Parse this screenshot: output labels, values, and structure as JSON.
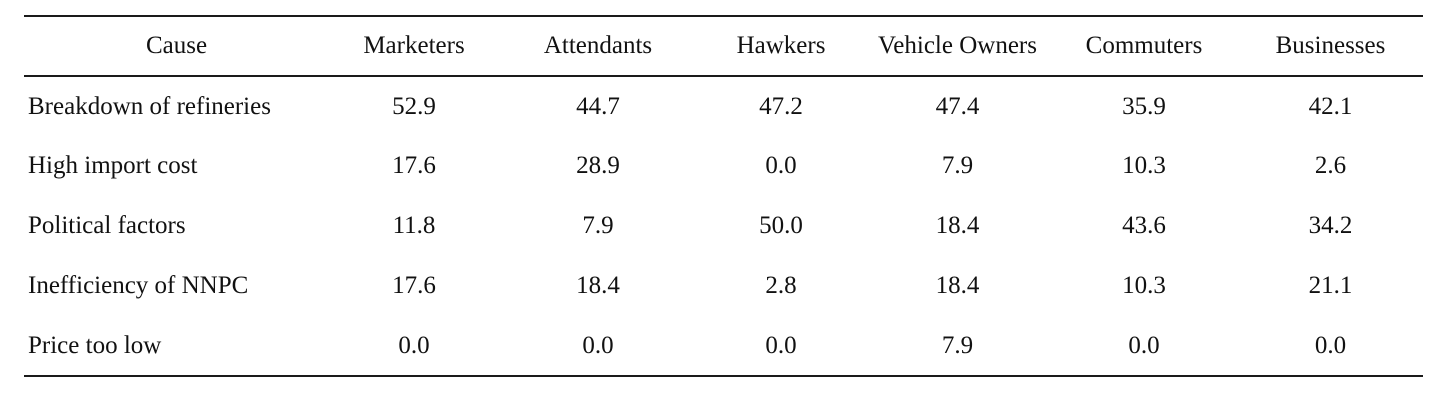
{
  "table": {
    "headers": [
      "Cause",
      "Marketers",
      "Attendants",
      "Hawkers",
      "Vehicle Owners",
      "Commuters",
      "Businesses"
    ],
    "rows": [
      [
        "Breakdown of refineries",
        "52.9",
        "44.7",
        "47.2",
        "47.4",
        "35.9",
        "42.1"
      ],
      [
        "High import cost",
        "17.6",
        "28.9",
        "0.0",
        "7.9",
        "10.3",
        "2.6"
      ],
      [
        "Political factors",
        "11.8",
        "7.9",
        "50.0",
        "18.4",
        "43.6",
        "34.2"
      ],
      [
        "Inefficiency of NNPC",
        "17.6",
        "18.4",
        "2.8",
        "18.4",
        "10.3",
        "21.1"
      ],
      [
        "Price too low",
        "0.0",
        "0.0",
        "0.0",
        "7.9",
        "0.0",
        "0.0"
      ]
    ]
  }
}
